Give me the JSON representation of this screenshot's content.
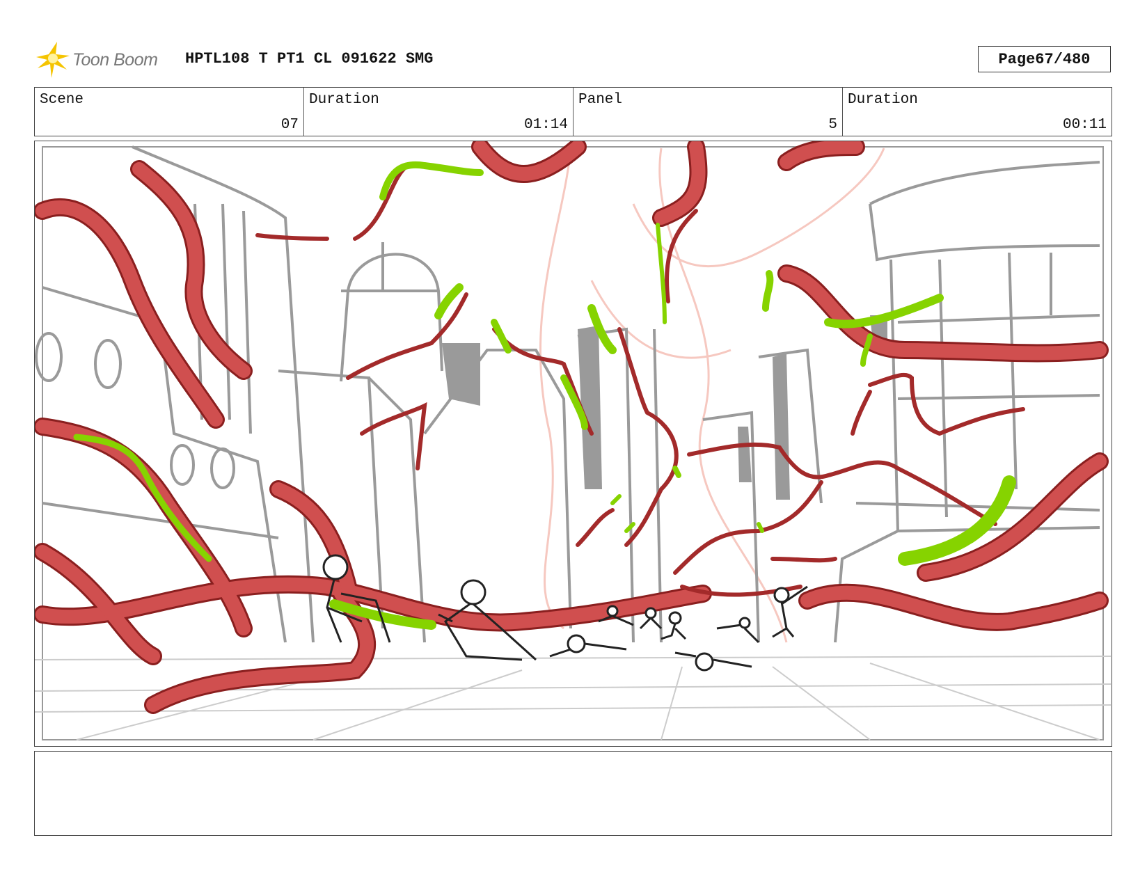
{
  "header": {
    "logo_text": "Toon Boom",
    "project_title": "HPTL108 T PT1 CL 091622 SMG",
    "page_label": "Page",
    "page_value": "67/480"
  },
  "info": {
    "scene_label": "Scene",
    "scene_value": "07",
    "scene_duration_label": "Duration",
    "scene_duration_value": "01:14",
    "panel_label": "Panel",
    "panel_value": "5",
    "panel_duration_label": "Duration",
    "panel_duration_value": "00:11"
  },
  "panel_image": {
    "description_colors": {
      "vine": "#d04f4f",
      "vine_outline": "#8a1f1f",
      "slime": "#86d300",
      "building": "#9a9a9a",
      "ghost": "#f6c8c0"
    }
  },
  "caption": {
    "text": ""
  }
}
